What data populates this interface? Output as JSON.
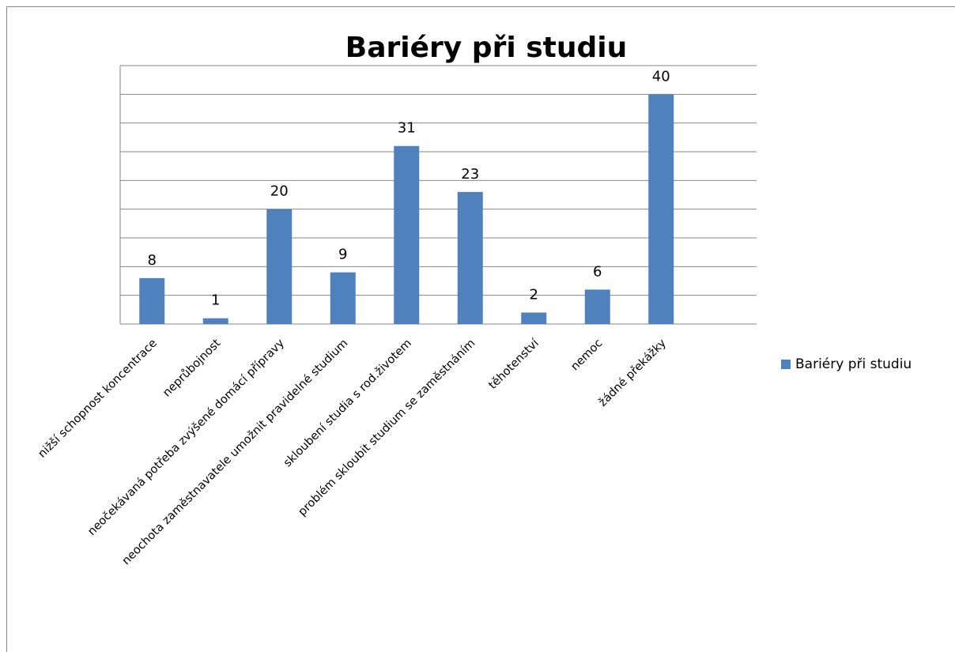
{
  "chart_data": {
    "type": "bar",
    "title": "Bariéry při studiu",
    "categories": [
      "nižší schopnost koncentrace",
      "neprůbojnost",
      "neočekávaná potřeba zvýšené domácí přípravy",
      "neochota zaměstnavatele umožnit pravidelné studium",
      "skloubení studia s rod.životem",
      "problém skloubit studium se zaměstnáním",
      "těhotenství",
      "nemoc",
      "žádné překážky",
      null
    ],
    "series": [
      {
        "name": "Bariéry při studiu",
        "color": "#4f81bd",
        "values": [
          8,
          1,
          20,
          9,
          31,
          23,
          2,
          6,
          40,
          null
        ]
      }
    ],
    "ylim": [
      0,
      45
    ],
    "yticks": [
      0,
      5,
      10,
      15,
      20,
      25,
      30,
      35,
      40,
      45
    ],
    "grid": true,
    "legend": "right"
  }
}
